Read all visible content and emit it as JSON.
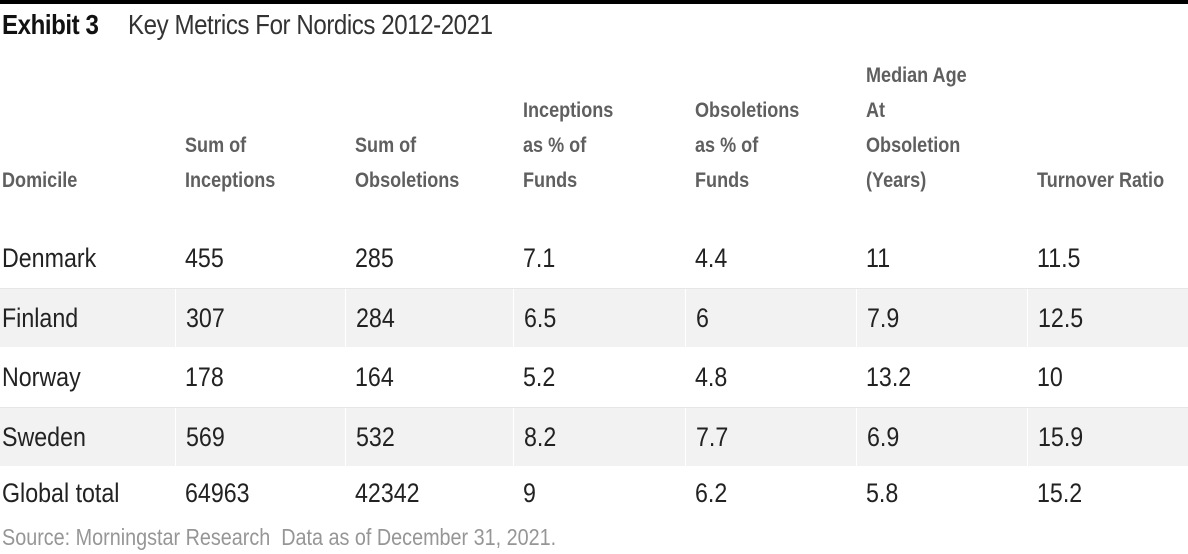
{
  "header": {
    "exhibit_label": "Exhibit 3",
    "title": "Key Metrics For Nordics 2012-2021"
  },
  "table": {
    "columns": [
      "Domicile",
      "Sum of\nInceptions",
      "Sum of\nObsoletions",
      "Inceptions\nas % of\nFunds",
      "Obsoletions\nas % of\nFunds",
      "Median Age\nAt\nObsoletion\n(Years)",
      "Turnover Ratio"
    ],
    "rows": [
      {
        "cells": [
          "Denmark",
          "455",
          "285",
          "7.1",
          "4.4",
          "11",
          "11.5"
        ]
      },
      {
        "cells": [
          "Finland",
          "307",
          "284",
          "6.5",
          "6",
          "7.9",
          "12.5"
        ]
      },
      {
        "cells": [
          "Norway",
          "178",
          "164",
          "5.2",
          "4.8",
          "13.2",
          "10"
        ]
      },
      {
        "cells": [
          "Sweden",
          "569",
          "532",
          "8.2",
          "7.7",
          "6.9",
          "15.9"
        ]
      },
      {
        "cells": [
          "Global total",
          "64963",
          "42342",
          "9",
          "6.2",
          "5.8",
          "15.2"
        ]
      }
    ]
  },
  "footer": {
    "source": "Source: Morningstar Research  Data as of December 31, 2021."
  },
  "colors": {
    "accent_bar": "#000000",
    "stripe": "#f2f2f2",
    "header_text": "#5f5f5f",
    "data_text": "#222222",
    "source_text": "#969696"
  }
}
